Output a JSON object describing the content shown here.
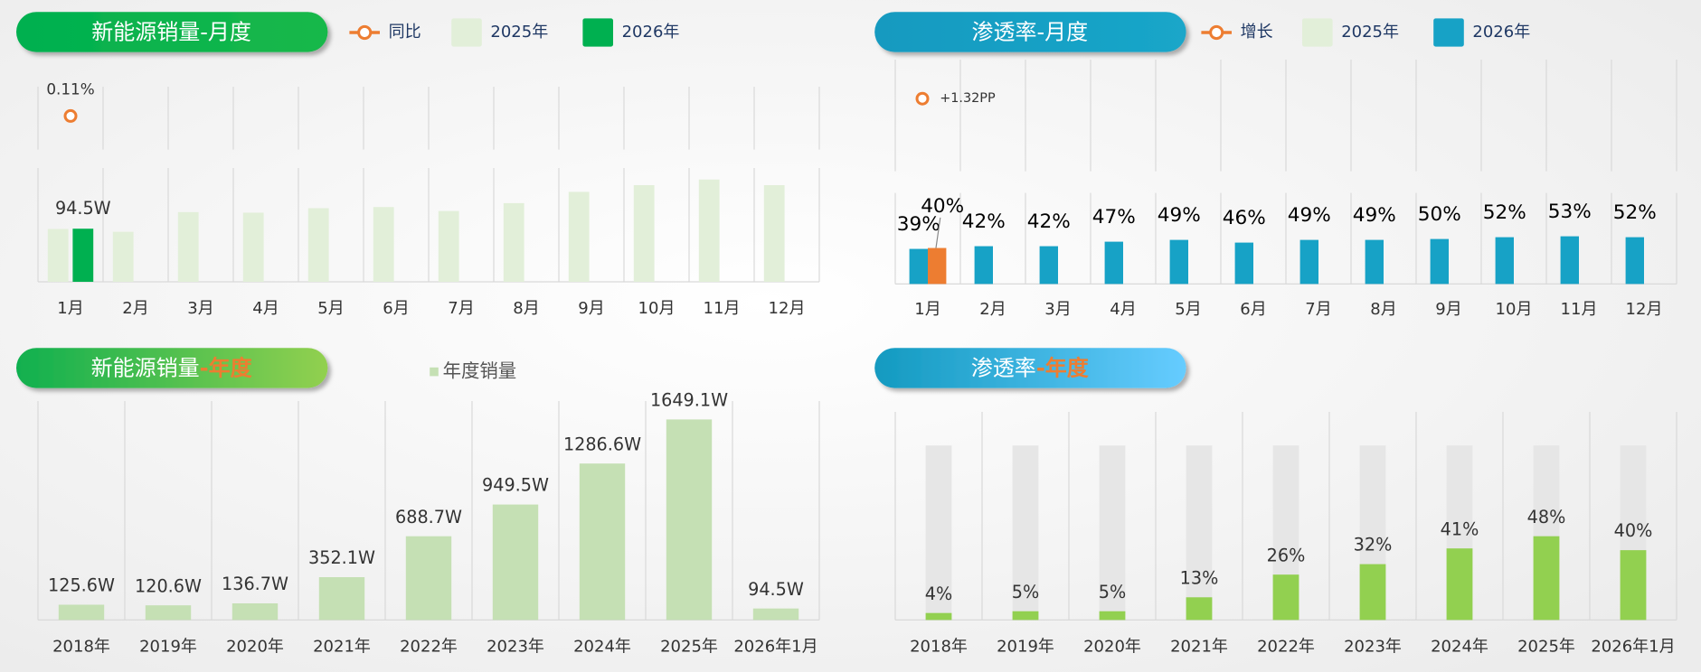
{
  "chart_data": [
    {
      "type": "bar",
      "title": "新能源销量-月度",
      "categories": [
        "1月",
        "2月",
        "3月",
        "4月",
        "5月",
        "6月",
        "7月",
        "8月",
        "9月",
        "10月",
        "11月",
        "12月"
      ],
      "series": [
        {
          "name": "同比",
          "type": "line",
          "color": "#ed7d31",
          "values": [
            0.11,
            null,
            null,
            null,
            null,
            null,
            null,
            null,
            null,
            null,
            null,
            null
          ],
          "value_labels": [
            "0.11%",
            null,
            null,
            null,
            null,
            null,
            null,
            null,
            null,
            null,
            null,
            null
          ]
        },
        {
          "name": "2025年",
          "color": "#e2efd9",
          "values": [
            94,
            89,
            124,
            123,
            131,
            133,
            126,
            140,
            160,
            172,
            182,
            172
          ]
        },
        {
          "name": "2026年",
          "color": "#00b050",
          "values": [
            94.5,
            null,
            null,
            null,
            null,
            null,
            null,
            null,
            null,
            null,
            null,
            null
          ],
          "value_labels": [
            "94.5W",
            null,
            null,
            null,
            null,
            null,
            null,
            null,
            null,
            null,
            null,
            null
          ]
        }
      ]
    },
    {
      "type": "bar",
      "title": "渗透率-月度",
      "categories": [
        "1月",
        "2月",
        "3月",
        "4月",
        "5月",
        "6月",
        "7月",
        "8月",
        "9月",
        "10月",
        "11月",
        "12月"
      ],
      "series": [
        {
          "name": "增长",
          "type": "line",
          "color": "#ed7d31",
          "values": [
            1.32,
            null,
            null,
            null,
            null,
            null,
            null,
            null,
            null,
            null,
            null,
            null
          ],
          "value_labels": [
            "+1.32PP",
            null,
            null,
            null,
            null,
            null,
            null,
            null,
            null,
            null,
            null,
            null
          ]
        },
        {
          "name": "2025年",
          "color": "#17a2c6",
          "legend_color": "#e2efd9",
          "values": [
            39,
            42,
            42,
            47,
            49,
            46,
            49,
            49,
            50,
            52,
            53,
            52
          ],
          "value_labels": [
            "39%",
            "42%",
            "42%",
            "47%",
            "49%",
            "46%",
            "49%",
            "49%",
            "50%",
            "52%",
            "53%",
            "52%"
          ]
        },
        {
          "name": "2026年",
          "color": "#ed7d31",
          "legend_color": "#17a2c6",
          "values": [
            40,
            null,
            null,
            null,
            null,
            null,
            null,
            null,
            null,
            null,
            null,
            null
          ],
          "value_labels": [
            "40%",
            null,
            null,
            null,
            null,
            null,
            null,
            null,
            null,
            null,
            null,
            null
          ]
        }
      ]
    },
    {
      "type": "bar",
      "title_parts": [
        "新能源销量",
        "-年度"
      ],
      "categories": [
        "2018年",
        "2019年",
        "2020年",
        "2021年",
        "2022年",
        "2023年",
        "2024年",
        "2025年",
        "2026年1月"
      ],
      "series": [
        {
          "name": "年度销量",
          "color": "#c5e0b4",
          "values": [
            125.6,
            120.6,
            136.7,
            352.1,
            688.7,
            949.5,
            1286.6,
            1649.1,
            94.5
          ],
          "value_labels": [
            "125.6W",
            "120.6W",
            "136.7W",
            "352.1W",
            "688.7W",
            "949.5W",
            "1286.6W",
            "1649.1W",
            "94.5W"
          ]
        }
      ]
    },
    {
      "type": "bar",
      "title_parts": [
        "渗透率",
        "-年度"
      ],
      "ylim": [
        0,
        100
      ],
      "categories": [
        "2018年",
        "2019年",
        "2020年",
        "2021年",
        "2022年",
        "2023年",
        "2024年",
        "2025年",
        "2026年1月"
      ],
      "series": [
        {
          "color": "#92d050",
          "values": [
            4,
            5,
            5,
            13,
            26,
            32,
            41,
            48,
            40
          ],
          "value_labels": [
            "4%",
            "5%",
            "5%",
            "13%",
            "26%",
            "32%",
            "41%",
            "48%",
            "40%"
          ]
        }
      ]
    }
  ]
}
